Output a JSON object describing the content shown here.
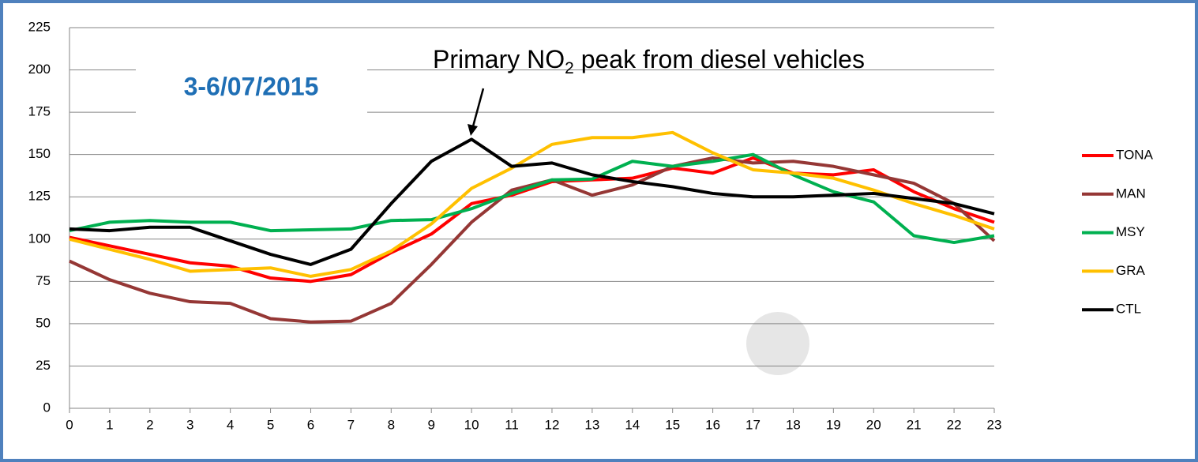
{
  "chart_data": {
    "type": "line",
    "annotation": [
      "Primary NO",
      "2",
      " peak from diesel vehicles"
    ],
    "date_label": "3-6/07/2015",
    "x": [
      0,
      1,
      2,
      3,
      4,
      5,
      6,
      7,
      8,
      9,
      10,
      11,
      12,
      13,
      14,
      15,
      16,
      17,
      18,
      19,
      20,
      21,
      22,
      23
    ],
    "xlim": [
      0,
      23
    ],
    "xticks": [
      0,
      1,
      2,
      3,
      4,
      5,
      6,
      7,
      8,
      9,
      10,
      11,
      12,
      13,
      14,
      15,
      16,
      17,
      18,
      19,
      20,
      21,
      22,
      23
    ],
    "ylim": [
      0,
      225
    ],
    "yticks": [
      0,
      25,
      50,
      75,
      100,
      125,
      150,
      175,
      200,
      225
    ],
    "grid": true,
    "legend": "right",
    "series": [
      {
        "name": "TONA",
        "color": "#ff0000",
        "values": [
          101,
          96,
          91,
          86,
          84,
          77,
          75,
          79,
          92,
          103,
          121,
          126,
          134,
          135,
          136,
          142,
          139,
          148,
          139,
          138,
          141,
          128,
          118,
          110
        ]
      },
      {
        "name": "MAN",
        "color": "#953735",
        "values": [
          87,
          76,
          68,
          63,
          62,
          53,
          51,
          51.5,
          62,
          85,
          110,
          129,
          135,
          126,
          132,
          143,
          148,
          145,
          146,
          143,
          138,
          133,
          121,
          99
        ]
      },
      {
        "name": "MSY",
        "color": "#00b050",
        "values": [
          105,
          110,
          111,
          110,
          110,
          105,
          105.5,
          106,
          111,
          111.5,
          118,
          127,
          135,
          135.5,
          146,
          143,
          146,
          150,
          138,
          128,
          122,
          102,
          98,
          102
        ]
      },
      {
        "name": "GRA",
        "color": "#ffc000",
        "values": [
          100,
          94,
          88,
          81,
          82,
          83,
          78,
          82,
          93,
          109,
          130,
          142,
          156,
          160,
          160,
          163,
          151,
          141,
          139,
          136,
          129,
          121,
          114,
          106
        ]
      },
      {
        "name": "CTL",
        "color": "#000000",
        "values": [
          106,
          105,
          107,
          107,
          99,
          91,
          85,
          94,
          121,
          146,
          159,
          143,
          145,
          138,
          134,
          131,
          127,
          125,
          125,
          126,
          127,
          124,
          121,
          115
        ]
      }
    ]
  }
}
